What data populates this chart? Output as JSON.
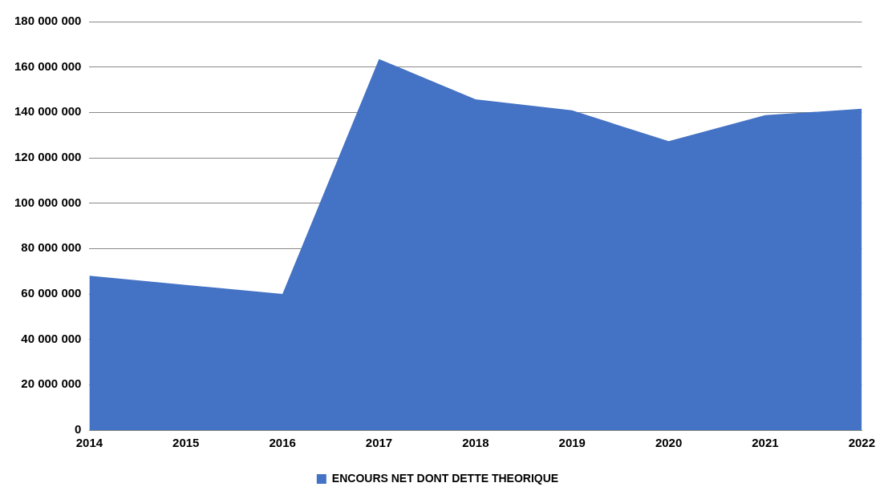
{
  "chart_data": {
    "type": "area",
    "categories": [
      "2014",
      "2015",
      "2016",
      "2017",
      "2018",
      "2019",
      "2020",
      "2021",
      "2022"
    ],
    "series": [
      {
        "name": "ENCOURS NET DONT DETTE THEORIQUE",
        "color": "#4472c4",
        "values": [
          68000000,
          64000000,
          60000000,
          163500000,
          145800000,
          140900000,
          127300000,
          138800000,
          141600000
        ]
      }
    ],
    "ylim": [
      0,
      180000000
    ],
    "yticks": [
      {
        "value": 0,
        "label": "0"
      },
      {
        "value": 20000000,
        "label": "20 000 000"
      },
      {
        "value": 40000000,
        "label": "40 000 000"
      },
      {
        "value": 60000000,
        "label": "60 000 000"
      },
      {
        "value": 80000000,
        "label": "80 000 000"
      },
      {
        "value": 100000000,
        "label": "100 000 000"
      },
      {
        "value": 120000000,
        "label": "120 000 000"
      },
      {
        "value": 140000000,
        "label": "140 000 000"
      },
      {
        "value": 160000000,
        "label": "160 000 000"
      },
      {
        "value": 180000000,
        "label": "180 000 000"
      }
    ],
    "grid": "y",
    "legend": "bottom"
  }
}
